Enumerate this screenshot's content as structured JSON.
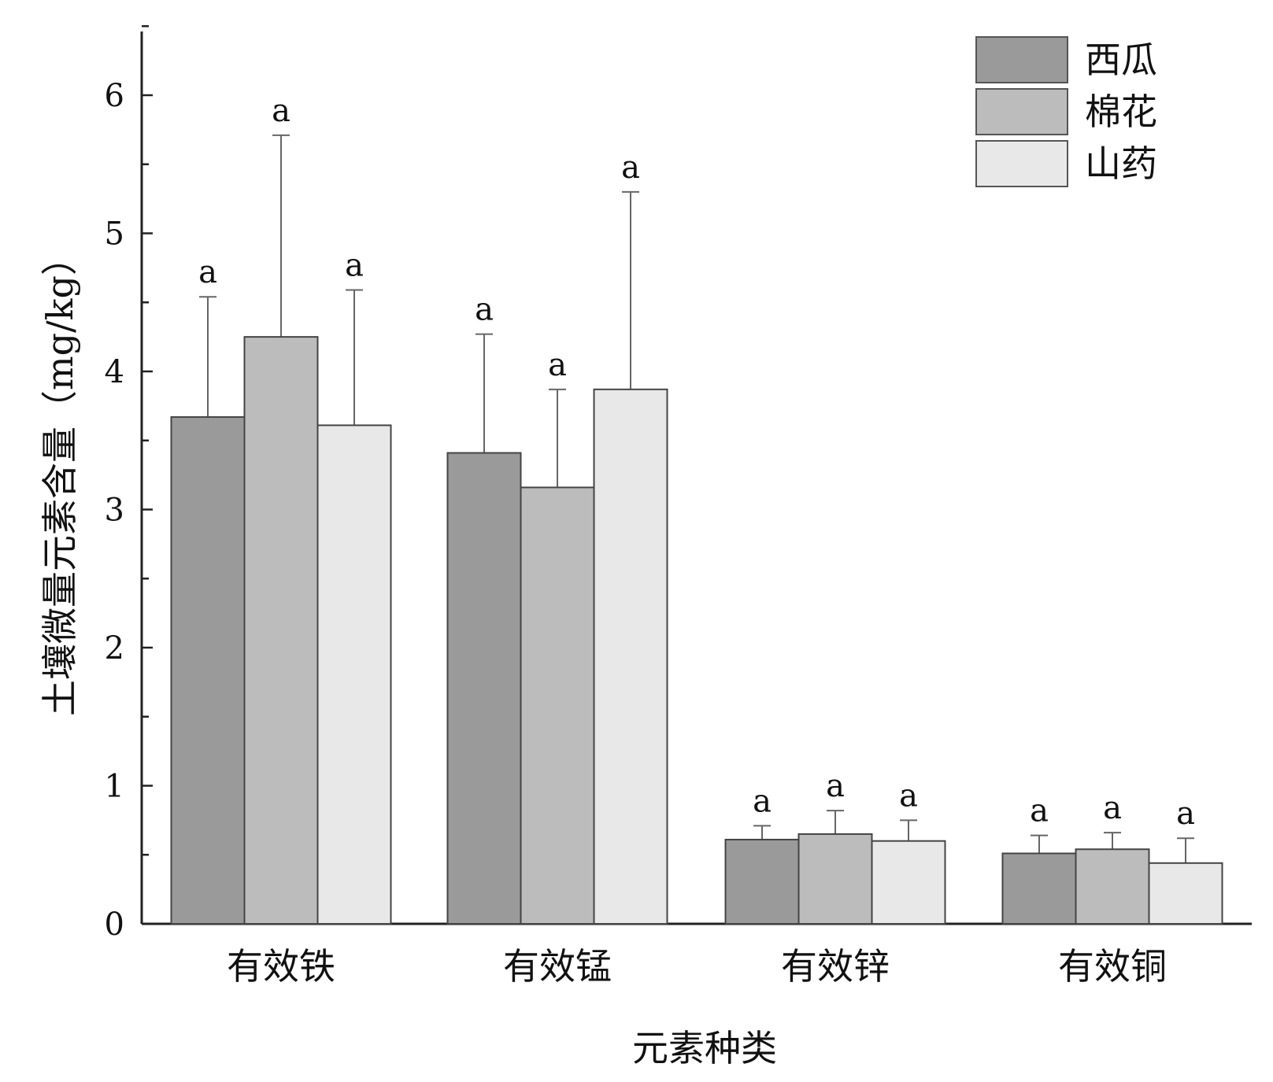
{
  "chart_data": {
    "type": "bar",
    "xlabel": "元素种类",
    "ylabel": "土壤微量元素含量（mg/kg）",
    "ylim": [
      0,
      6.5
    ],
    "yticks": [
      "0",
      "1",
      "2",
      "3",
      "4",
      "5",
      "6"
    ],
    "categories": [
      "有效铁",
      "有效锰",
      "有效锌",
      "有效铜"
    ],
    "legend_position": "top-right",
    "grid": false,
    "series": [
      {
        "name": "西瓜",
        "color": "#9a9a9a",
        "values": [
          3.67,
          3.41,
          0.61,
          0.51
        ],
        "errors": [
          0.87,
          0.86,
          0.1,
          0.13
        ],
        "labels": [
          "a",
          "a",
          "a",
          "a"
        ]
      },
      {
        "name": "棉花",
        "color": "#bcbcbc",
        "values": [
          4.25,
          3.16,
          0.65,
          0.54
        ],
        "errors": [
          1.46,
          0.71,
          0.17,
          0.12
        ],
        "labels": [
          "a",
          "a",
          "a",
          "a"
        ]
      },
      {
        "name": "山药",
        "color": "#e8e8e8",
        "values": [
          3.61,
          3.87,
          0.6,
          0.44
        ],
        "errors": [
          0.98,
          1.43,
          0.15,
          0.18
        ],
        "labels": [
          "a",
          "a",
          "a",
          "a"
        ]
      }
    ]
  }
}
